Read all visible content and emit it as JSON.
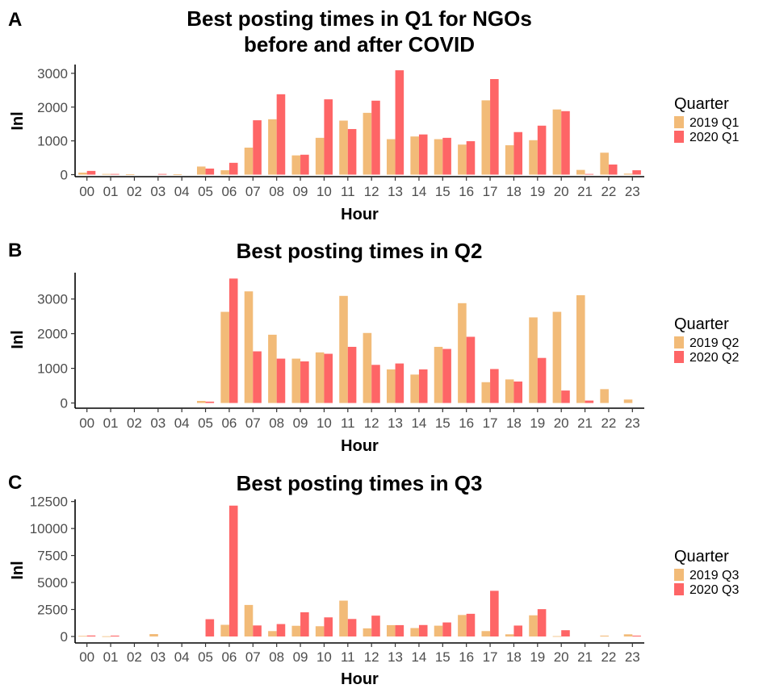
{
  "colors": {
    "c2019": "#f2bb78",
    "c2020": "#fe6566"
  },
  "chart_data": [
    {
      "type": "bar",
      "panel": "A",
      "title": [
        "Best posting times in Q1 for NGOs",
        "before and after COVID"
      ],
      "xlabel": "Hour",
      "ylabel": "Inl",
      "ylim": [
        -60,
        3260
      ],
      "yticks": [
        0,
        1000,
        2000,
        3000
      ],
      "ytick_labels": [
        "0",
        "1000",
        "2000",
        "3000"
      ],
      "categories": [
        "00",
        "01",
        "02",
        "03",
        "04",
        "05",
        "06",
        "07",
        "08",
        "09",
        "10",
        "11",
        "12",
        "13",
        "14",
        "15",
        "16",
        "17",
        "18",
        "19",
        "20",
        "21",
        "22",
        "23"
      ],
      "legend_title": "Quarter",
      "series": [
        {
          "name": "2019 Q1",
          "color": "#f2bb78",
          "values": [
            60,
            20,
            10,
            0,
            10,
            240,
            130,
            800,
            1640,
            570,
            1090,
            1600,
            1830,
            1050,
            1130,
            1050,
            890,
            2200,
            870,
            1020,
            1930,
            140,
            650,
            30
          ]
        },
        {
          "name": "2020 Q1",
          "color": "#fe6566",
          "values": [
            110,
            20,
            0,
            20,
            0,
            180,
            350,
            1610,
            2380,
            590,
            2230,
            1350,
            2190,
            3090,
            1190,
            1090,
            990,
            2830,
            1260,
            1450,
            1880,
            20,
            300,
            130
          ]
        }
      ]
    },
    {
      "type": "bar",
      "panel": "B",
      "title": [
        "Best posting times in Q2"
      ],
      "xlabel": "Hour",
      "ylabel": "Inl",
      "ylim": [
        -150,
        3760
      ],
      "yticks": [
        0,
        1000,
        2000,
        3000
      ],
      "ytick_labels": [
        "0",
        "1000",
        "2000",
        "3000"
      ],
      "categories": [
        "00",
        "01",
        "02",
        "03",
        "04",
        "05",
        "06",
        "07",
        "08",
        "09",
        "10",
        "11",
        "12",
        "13",
        "14",
        "15",
        "16",
        "17",
        "18",
        "19",
        "20",
        "21",
        "22",
        "23"
      ],
      "legend_title": "Quarter",
      "series": [
        {
          "name": "2019 Q2",
          "color": "#f2bb78",
          "values": [
            0,
            0,
            0,
            0,
            0,
            60,
            2630,
            3220,
            1970,
            1280,
            1460,
            3090,
            2020,
            970,
            820,
            1620,
            2880,
            600,
            680,
            2470,
            2630,
            3110,
            400,
            100
          ]
        },
        {
          "name": "2020 Q2",
          "color": "#fe6566",
          "values": [
            0,
            0,
            0,
            0,
            0,
            40,
            3590,
            1490,
            1280,
            1200,
            1420,
            1620,
            1100,
            1140,
            970,
            1560,
            1910,
            980,
            620,
            1300,
            360,
            70,
            0,
            0
          ]
        }
      ]
    },
    {
      "type": "bar",
      "panel": "C",
      "title": [
        "Best posting times in Q3"
      ],
      "xlabel": "Hour",
      "ylabel": "Inl",
      "ylim": [
        -600,
        12700
      ],
      "yticks": [
        0,
        2500,
        5000,
        7500,
        10000,
        12500
      ],
      "ytick_labels": [
        "0",
        "2500",
        "5000",
        "7500",
        "10000",
        "12500"
      ],
      "categories": [
        "00",
        "01",
        "02",
        "03",
        "04",
        "05",
        "06",
        "07",
        "08",
        "09",
        "10",
        "11",
        "12",
        "13",
        "14",
        "15",
        "16",
        "17",
        "18",
        "19",
        "20",
        "21",
        "22",
        "23"
      ],
      "legend_title": "Quarter",
      "series": [
        {
          "name": "2019 Q3",
          "color": "#f2bb78",
          "values": [
            50,
            20,
            0,
            220,
            0,
            0,
            1080,
            2920,
            500,
            990,
            950,
            3320,
            750,
            1050,
            780,
            1000,
            1990,
            500,
            200,
            1960,
            30,
            0,
            80,
            200
          ]
        },
        {
          "name": "2020 Q3",
          "color": "#fe6566",
          "values": [
            90,
            80,
            0,
            0,
            0,
            1600,
            12120,
            1020,
            1150,
            2240,
            1770,
            1620,
            1930,
            1050,
            1060,
            1300,
            2100,
            4230,
            1010,
            2530,
            580,
            0,
            0,
            80
          ]
        }
      ]
    }
  ]
}
